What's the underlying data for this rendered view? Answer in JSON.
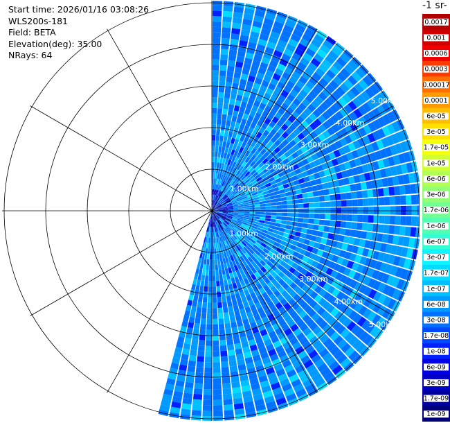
{
  "header": {
    "start_time": "Start time: 2026/01/16 03:08:26",
    "instrument": "WLS200s-181",
    "field": "Field: BETA",
    "elevation": "Elevation(deg): 35.00",
    "nrays": "NRays: 64"
  },
  "units_label": "-1 sr-",
  "colors": {
    "background": "#ffffff",
    "grid": "#000000",
    "gap": "#ffffff",
    "range_label": "#ffffff"
  },
  "chart_data": {
    "type": "heatmap",
    "projection": "polar-ppi",
    "field": "BETA",
    "nrays": 64,
    "azimuth_sector_deg": [
      0,
      195
    ],
    "range_rings_km": [
      1,
      2,
      3,
      4,
      5
    ],
    "range_ring_labels": [
      "1.00km",
      "2.00km",
      "3.00km",
      "4.00km",
      "5.00km"
    ],
    "max_range_km": 5.05,
    "spokes_deg": [
      0,
      30,
      60,
      90,
      120,
      150,
      180,
      210,
      240,
      270,
      300,
      330
    ],
    "typical_value_range": [
      "1e-08",
      "6e-08"
    ],
    "colorbar": {
      "labels": [
        "0.0017",
        "0.001",
        "0.0006",
        "0.0003",
        "0.00017",
        "0.0001",
        "6e-05",
        "3e-05",
        "1.7e-05",
        "1e-05",
        "6e-06",
        "3e-06",
        "1.7e-06",
        "1e-06",
        "6e-07",
        "3e-07",
        "1.7e-07",
        "1e-07",
        "6e-08",
        "3e-08",
        "1.7e-08",
        "1e-08",
        "6e-09",
        "3e-09",
        "1.7e-09",
        "1e-09"
      ],
      "colors": [
        "#b20000",
        "#d10000",
        "#f00000",
        "#ff3a00",
        "#ff6e00",
        "#ff9a00",
        "#ffbe00",
        "#ffe000",
        "#f4ff10",
        "#d2ff33",
        "#b1ff55",
        "#92ff74",
        "#74ff92",
        "#55ffb1",
        "#33ffd2",
        "#10f4ff",
        "#00ddff",
        "#00beff",
        "#009aff",
        "#0072ff",
        "#0048ff",
        "#0020ff",
        "#0000e8",
        "#0000c4",
        "#00009c",
        "#00007a"
      ]
    }
  }
}
